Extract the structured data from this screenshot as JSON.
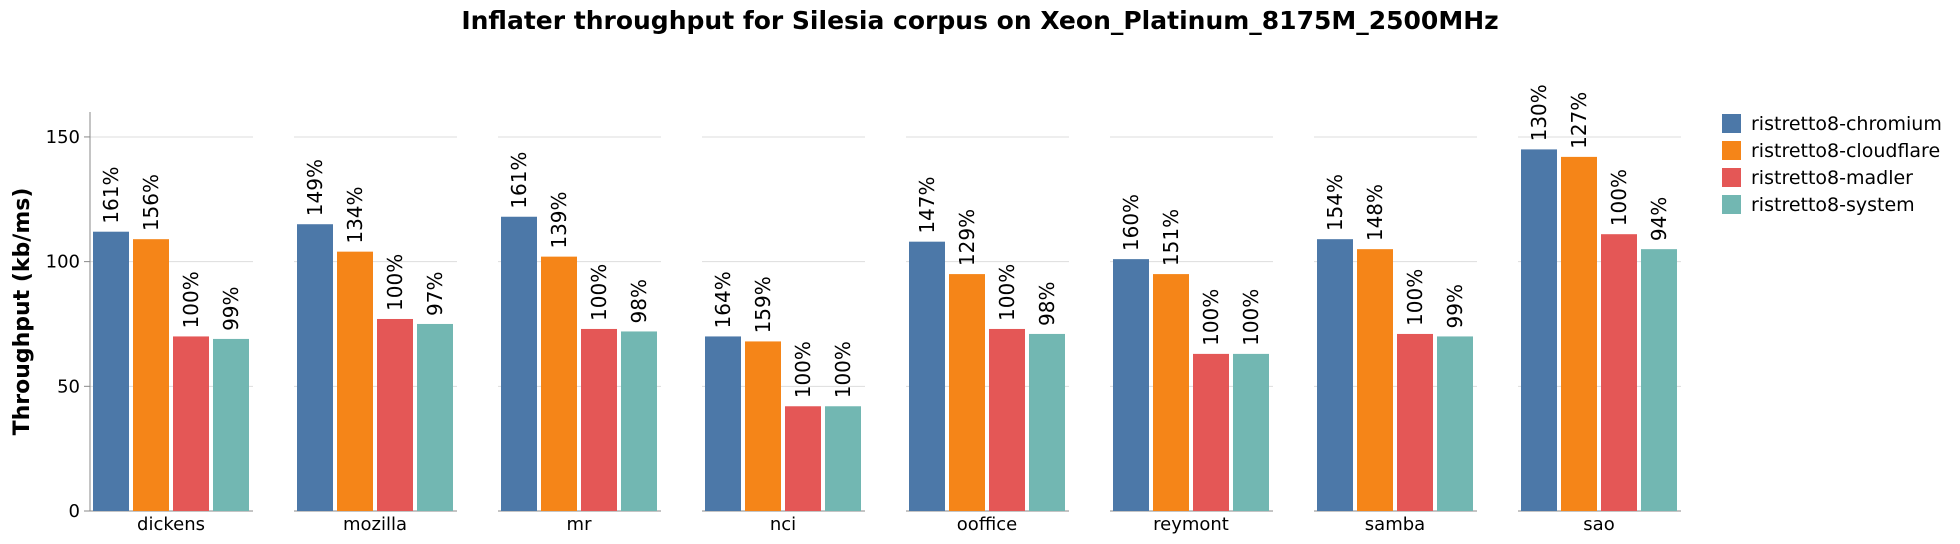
{
  "chart_data": {
    "type": "bar",
    "title": "Inflater throughput for Silesia corpus on Xeon_Platinum_8175M_2500MHz",
    "ylabel": "Throughput (kb/ms)",
    "xlabel": "",
    "ylim": [
      0,
      160
    ],
    "yticks": [
      0,
      50,
      100,
      150
    ],
    "grid": true,
    "legend_position": "right",
    "categories": [
      "dickens",
      "mozilla",
      "mr",
      "nci",
      "ooffice",
      "reymont",
      "samba",
      "sao"
    ],
    "series": [
      {
        "name": "ristretto8-chromium",
        "color": "#4c78a8",
        "values": [
          112,
          115,
          118,
          70,
          108,
          101,
          109,
          145
        ],
        "labels": [
          "161%",
          "149%",
          "161%",
          "164%",
          "147%",
          "160%",
          "154%",
          "130%"
        ]
      },
      {
        "name": "ristretto8-cloudflare",
        "color": "#f58518",
        "values": [
          109,
          104,
          102,
          68,
          95,
          95,
          105,
          142
        ],
        "labels": [
          "156%",
          "134%",
          "139%",
          "159%",
          "129%",
          "151%",
          "148%",
          "127%"
        ]
      },
      {
        "name": "ristretto8-madler",
        "color": "#e45756",
        "values": [
          70,
          77,
          73,
          42,
          73,
          63,
          71,
          111
        ],
        "labels": [
          "100%",
          "100%",
          "100%",
          "100%",
          "100%",
          "100%",
          "100%",
          "100%"
        ]
      },
      {
        "name": "ristretto8-system",
        "color": "#72b7b2",
        "values": [
          69,
          75,
          72,
          42,
          71,
          63,
          70,
          105
        ],
        "labels": [
          "99%",
          "97%",
          "98%",
          "100%",
          "98%",
          "100%",
          "99%",
          "94%"
        ]
      }
    ]
  }
}
